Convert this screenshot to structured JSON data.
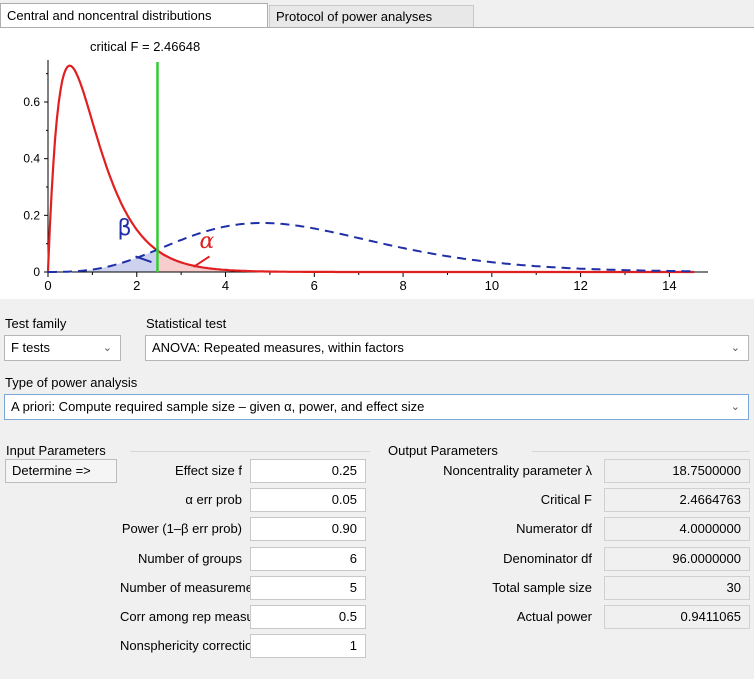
{
  "tabs": {
    "distributions": "Central and noncentral distributions",
    "protocol": "Protocol of power analyses"
  },
  "plot": {
    "critical_label": "critical F = 2.46648",
    "beta_symbol": "β",
    "alpha_symbol": "α",
    "y_ticks": [
      "0.6",
      "0.4",
      "0.2",
      "0"
    ],
    "x_ticks": [
      "0",
      "2",
      "4",
      "6",
      "8",
      "10",
      "12",
      "14"
    ],
    "colors": {
      "central": "#e02020",
      "noncentral": "#1f2fa8",
      "critical": "#33cc33"
    },
    "critical_f": 2.46648,
    "x_range": [
      0,
      14.6
    ],
    "y_range": [
      0,
      0.72
    ]
  },
  "selectors": {
    "test_family_label": "Test family",
    "test_family_value": "F tests",
    "statistical_test_label": "Statistical test",
    "statistical_test_value": "ANOVA: Repeated measures, within factors",
    "analysis_type_label": "Type of power analysis",
    "analysis_type_value": "A priori: Compute required sample size – given α, power, and effect size"
  },
  "input": {
    "header": "Input Parameters",
    "determine_button": "Determine =>",
    "rows": [
      {
        "label": "Effect size f",
        "value": "0.25"
      },
      {
        "label": "α err prob",
        "value": "0.05"
      },
      {
        "label": "Power (1–β err prob)",
        "value": "0.90"
      },
      {
        "label": "Number of groups",
        "value": "6"
      },
      {
        "label": "Number of measurements",
        "value": "5"
      },
      {
        "label": "Corr among rep measures",
        "value": "0.5"
      },
      {
        "label": "Nonsphericity correction ϵ",
        "value": "1"
      }
    ]
  },
  "output": {
    "header": "Output Parameters",
    "rows": [
      {
        "label": "Noncentrality parameter λ",
        "value": "18.7500000"
      },
      {
        "label": "Critical F",
        "value": "2.4664763"
      },
      {
        "label": "Numerator df",
        "value": "4.0000000"
      },
      {
        "label": "Denominator df",
        "value": "96.0000000"
      },
      {
        "label": "Total sample size",
        "value": "30"
      },
      {
        "label": "Actual power",
        "value": "0.9411065"
      }
    ]
  }
}
